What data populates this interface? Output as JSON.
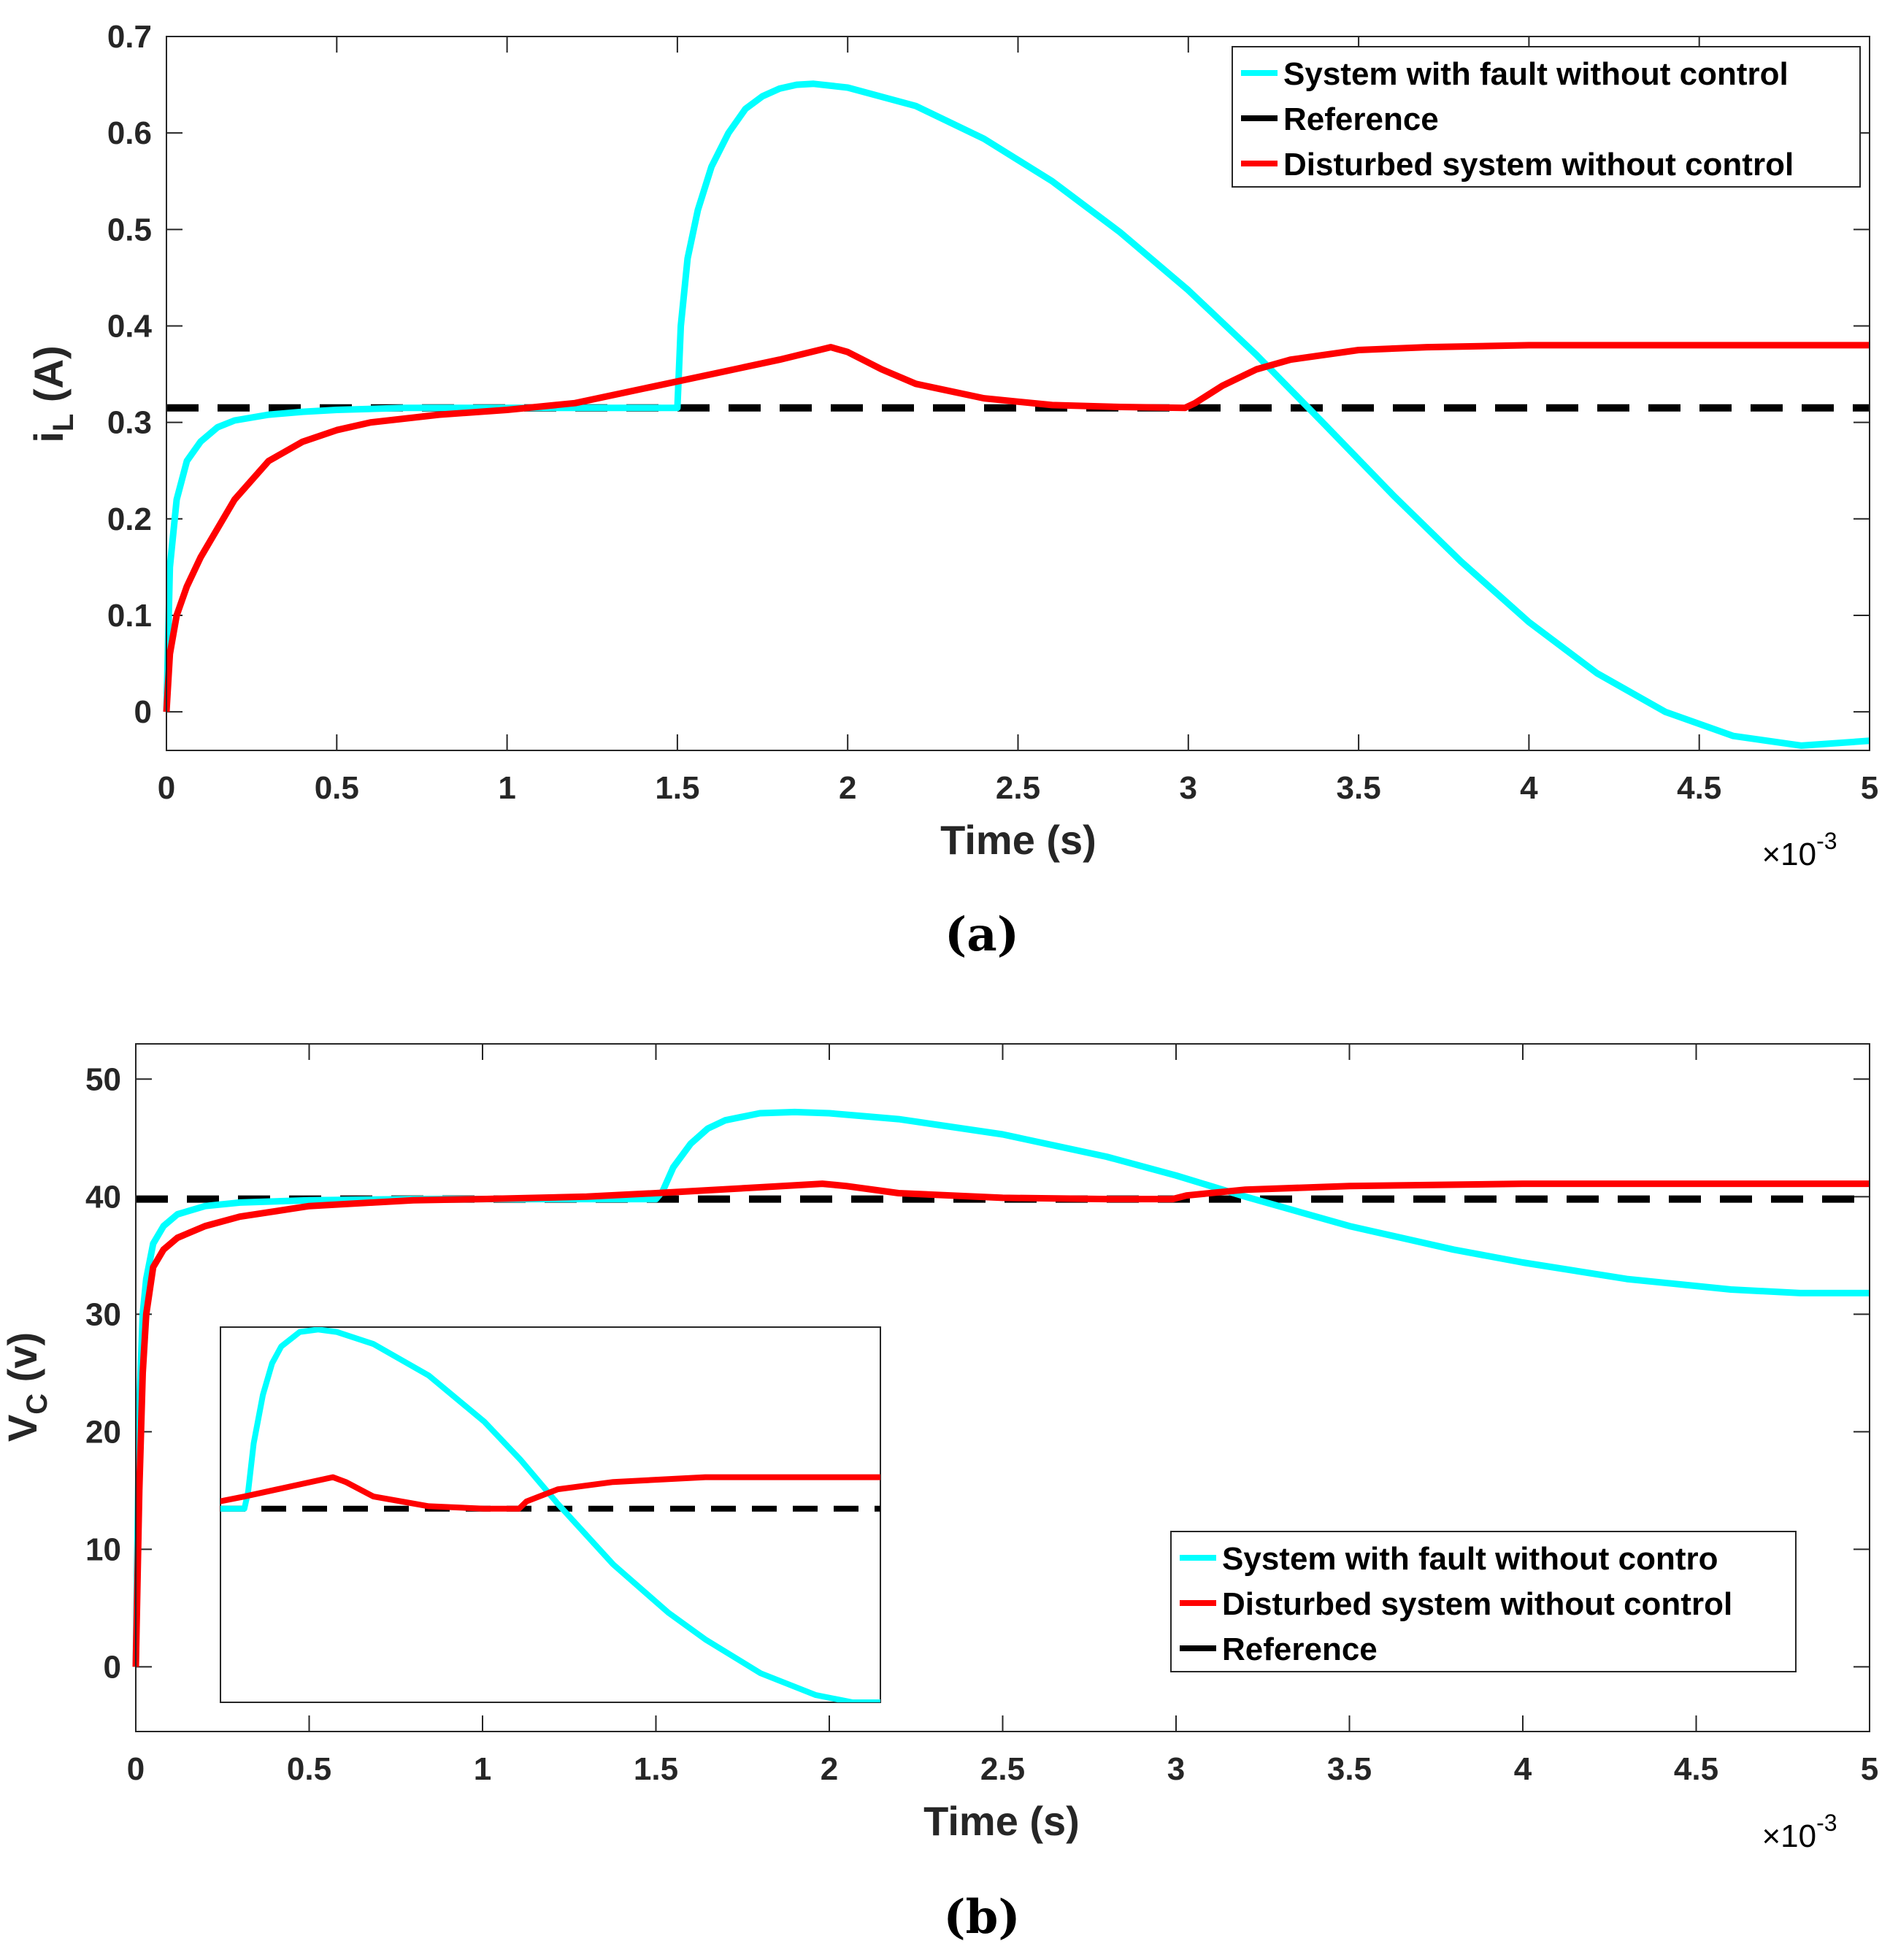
{
  "colors": {
    "fault": "#00ffff",
    "reference": "#000000",
    "disturbed": "#ff0000",
    "axis": "#262626"
  },
  "chart_data": [
    {
      "id": "a",
      "type": "line",
      "caption": "(a)",
      "xlabel": "Time (s)",
      "x_exponent": "×10",
      "x_exponent_power": "-3",
      "ylabel_main": "i",
      "ylabel_sub": "L",
      "ylabel_unit": " (A)",
      "xlim": [
        0,
        5
      ],
      "ylim": [
        -0.04,
        0.7
      ],
      "xticks": [
        0,
        0.5,
        1,
        1.5,
        2,
        2.5,
        3,
        3.5,
        4,
        4.5,
        5
      ],
      "xtick_labels": [
        "0",
        "0.5",
        "1",
        "1.5",
        "2",
        "2.5",
        "3",
        "3.5",
        "4",
        "4.5",
        "5"
      ],
      "yticks": [
        0,
        0.1,
        0.2,
        0.3,
        0.4,
        0.5,
        0.6,
        0.7
      ],
      "ytick_labels": [
        "0",
        "0.1",
        "0.2",
        "0.3",
        "0.4",
        "0.5",
        "0.6",
        "0.7"
      ],
      "legend_position": "top-right",
      "legend_order": [
        "fault",
        "reference",
        "disturbed"
      ],
      "series": [
        {
          "key": "fault",
          "name": "System with fault without control",
          "style": "solid",
          "x": [
            0,
            0.01,
            0.03,
            0.06,
            0.1,
            0.15,
            0.2,
            0.3,
            0.4,
            0.5,
            0.7,
            1.0,
            1.3,
            1.5,
            1.51,
            1.53,
            1.56,
            1.6,
            1.65,
            1.7,
            1.75,
            1.8,
            1.85,
            1.9,
            2.0,
            2.2,
            2.4,
            2.6,
            2.8,
            3.0,
            3.2,
            3.4,
            3.6,
            3.8,
            4.0,
            4.2,
            4.4,
            4.6,
            4.8,
            5.0
          ],
          "y": [
            0.0,
            0.15,
            0.22,
            0.26,
            0.28,
            0.295,
            0.302,
            0.308,
            0.311,
            0.313,
            0.315,
            0.315,
            0.315,
            0.315,
            0.4,
            0.47,
            0.52,
            0.565,
            0.6,
            0.625,
            0.638,
            0.646,
            0.65,
            0.651,
            0.647,
            0.628,
            0.594,
            0.55,
            0.497,
            0.437,
            0.37,
            0.298,
            0.225,
            0.156,
            0.093,
            0.04,
            0.0,
            -0.025,
            -0.035,
            -0.03
          ]
        },
        {
          "key": "reference",
          "name": "Reference",
          "style": "dashed",
          "x": [
            0,
            5
          ],
          "y": [
            0.315,
            0.315
          ]
        },
        {
          "key": "disturbed",
          "name": "Disturbed system without control",
          "style": "solid",
          "x": [
            0,
            0.01,
            0.03,
            0.06,
            0.1,
            0.15,
            0.2,
            0.3,
            0.4,
            0.5,
            0.6,
            0.8,
            1.0,
            1.2,
            1.4,
            1.6,
            1.8,
            1.95,
            2.0,
            2.1,
            2.2,
            2.4,
            2.6,
            2.8,
            2.99,
            3.02,
            3.1,
            3.2,
            3.3,
            3.5,
            3.7,
            4.0,
            4.5,
            5.0
          ],
          "y": [
            0.0,
            0.06,
            0.1,
            0.13,
            0.16,
            0.19,
            0.22,
            0.26,
            0.28,
            0.292,
            0.3,
            0.308,
            0.313,
            0.32,
            0.335,
            0.35,
            0.365,
            0.378,
            0.373,
            0.355,
            0.34,
            0.325,
            0.318,
            0.316,
            0.315,
            0.32,
            0.338,
            0.355,
            0.365,
            0.375,
            0.378,
            0.38,
            0.38,
            0.38
          ]
        }
      ]
    },
    {
      "id": "b",
      "type": "line",
      "caption": "(b)",
      "xlabel": "Time (s)",
      "x_exponent": "×10",
      "x_exponent_power": "-3",
      "ylabel_main": "V",
      "ylabel_sub": "C",
      "ylabel_unit": " (v)",
      "xlim": [
        0,
        5
      ],
      "ylim": [
        -5.5,
        53
      ],
      "xticks": [
        0,
        0.5,
        1,
        1.5,
        2,
        2.5,
        3,
        3.5,
        4,
        4.5,
        5
      ],
      "xtick_labels": [
        "0",
        "0.5",
        "1",
        "1.5",
        "2",
        "2.5",
        "3",
        "3.5",
        "4",
        "4.5",
        "5"
      ],
      "yticks": [
        0,
        10,
        20,
        30,
        40,
        50
      ],
      "ytick_labels": [
        "0",
        "10",
        "20",
        "30",
        "40",
        "50"
      ],
      "legend_position": "bottom-right",
      "legend_order": [
        "fault",
        "disturbed",
        "reference"
      ],
      "series": [
        {
          "key": "fault",
          "name": "System with fault without contro",
          "style": "solid",
          "x": [
            0,
            0.01,
            0.02,
            0.03,
            0.05,
            0.08,
            0.12,
            0.2,
            0.3,
            0.5,
            0.8,
            1.0,
            1.3,
            1.5,
            1.52,
            1.55,
            1.6,
            1.65,
            1.7,
            1.8,
            1.9,
            2.0,
            2.2,
            2.5,
            2.8,
            3.0,
            3.2,
            3.5,
            3.8,
            4.0,
            4.3,
            4.6,
            4.8,
            5.0
          ],
          "y": [
            0,
            22,
            30,
            33,
            36,
            37.5,
            38.5,
            39.2,
            39.5,
            39.7,
            39.8,
            39.8,
            39.8,
            39.8,
            40.5,
            42.5,
            44.5,
            45.8,
            46.5,
            47.1,
            47.2,
            47.1,
            46.6,
            45.3,
            43.4,
            41.8,
            40.0,
            37.5,
            35.5,
            34.4,
            33.0,
            32.1,
            31.8,
            31.8
          ]
        },
        {
          "key": "disturbed",
          "name": "Disturbed system without control",
          "style": "solid",
          "x": [
            0,
            0.01,
            0.02,
            0.03,
            0.05,
            0.08,
            0.12,
            0.2,
            0.3,
            0.5,
            0.8,
            1.0,
            1.3,
            1.5,
            1.8,
            1.98,
            2.05,
            2.2,
            2.5,
            2.8,
            2.99,
            3.03,
            3.2,
            3.5,
            4.0,
            4.5,
            5.0
          ],
          "y": [
            0,
            15,
            25,
            30,
            34,
            35.5,
            36.5,
            37.5,
            38.3,
            39.2,
            39.7,
            39.8,
            40.0,
            40.3,
            40.8,
            41.1,
            40.9,
            40.3,
            39.9,
            39.8,
            39.8,
            40.1,
            40.6,
            40.9,
            41.1,
            41.1,
            41.1
          ]
        },
        {
          "key": "reference",
          "name": "Reference",
          "style": "dashed",
          "x": [
            0,
            5
          ],
          "y": [
            39.8,
            39.8
          ]
        }
      ]
    }
  ]
}
